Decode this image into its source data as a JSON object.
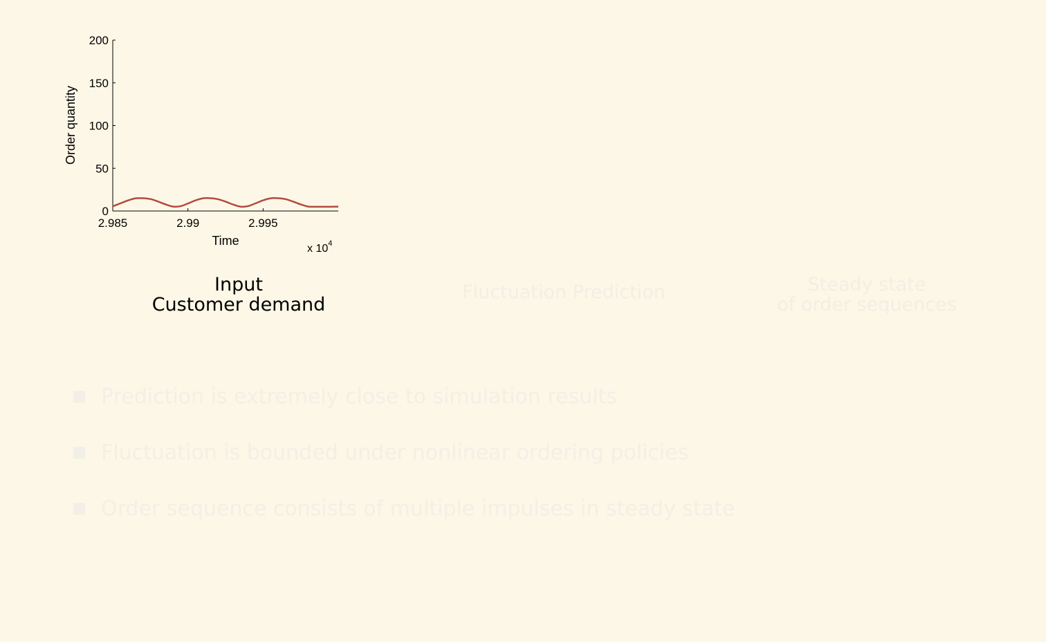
{
  "chart_data": {
    "type": "line",
    "title": "",
    "xlabel": "Time",
    "ylabel": "Order quantity",
    "x_multiplier_label": "x 10",
    "x_multiplier_exponent": "4",
    "xlim": [
      2.985,
      3.0
    ],
    "ylim": [
      0,
      200
    ],
    "xticks": [
      "2.985",
      "2.99",
      "2.995"
    ],
    "xtick_values": [
      2.985,
      2.99,
      2.995
    ],
    "yticks": [
      "0",
      "50",
      "100",
      "150",
      "200"
    ],
    "ytick_values": [
      0,
      50,
      100,
      150,
      200
    ],
    "grid": false,
    "series": [
      {
        "color": "#b24a3e",
        "x": [
          2.985,
          2.9855,
          2.986,
          2.9865,
          2.987,
          2.9875,
          2.988,
          2.9885,
          2.989,
          2.9895,
          2.99,
          2.9905,
          2.991,
          2.9915,
          2.992,
          2.9925,
          2.993,
          2.9935,
          2.994,
          2.9945,
          2.995,
          2.9955,
          2.996,
          2.9965,
          2.997,
          2.9975,
          2.998,
          2.9985,
          2.999,
          2.9995,
          3.0
        ],
        "y": [
          5.5,
          8.9,
          12.3,
          14.8,
          15.0,
          14.0,
          11.2,
          7.8,
          5.2,
          5.6,
          8.8,
          12.4,
          14.9,
          15.0,
          13.8,
          11.0,
          7.6,
          5.1,
          5.7,
          9.0,
          12.5,
          14.9,
          15.0,
          13.8,
          11.0,
          7.7,
          5.2,
          5.0,
          5.0,
          5.0,
          5.1
        ]
      }
    ]
  },
  "captions": {
    "input_line1": "Input",
    "input_line2": "Customer demand",
    "middle": "Fluctuation Prediction",
    "right_line1": "Steady state",
    "right_line2": "of order sequences"
  },
  "bullets": [
    "Prediction is extremely close to simulation results",
    "Fluctuation is bounded under nonlinear ordering policies",
    "Order sequence consists of multiple impulses in steady state"
  ]
}
